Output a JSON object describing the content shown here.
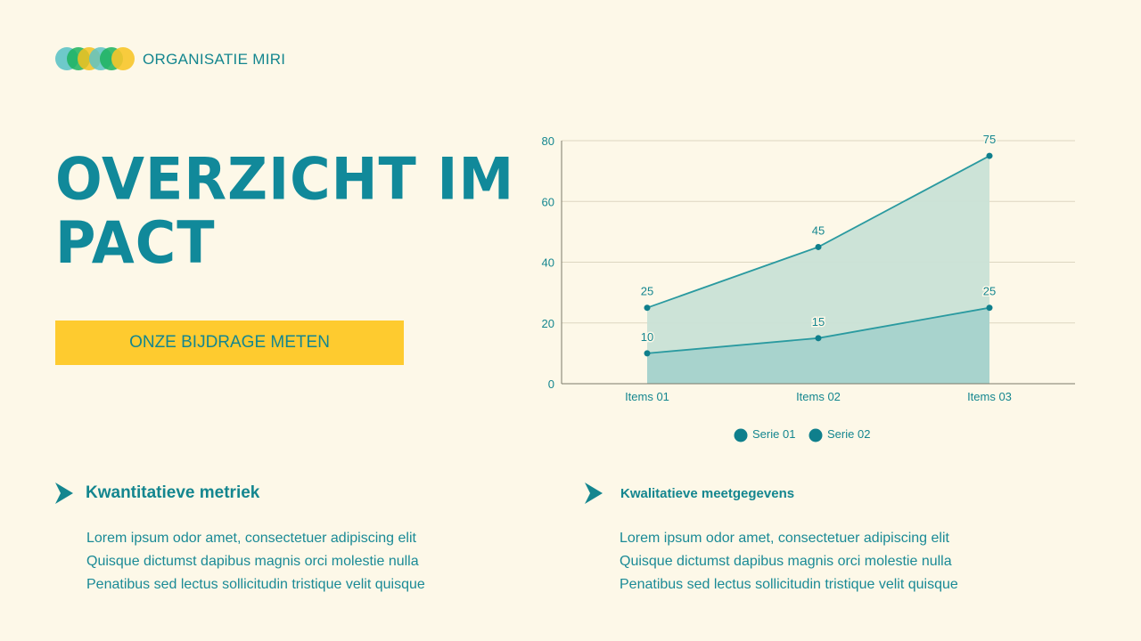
{
  "brand": {
    "name": "ORGANISATIE MIRI",
    "logo_colors": [
      "#5ec3c6",
      "#1cb35e",
      "#f3c21f",
      "#5ec3c6",
      "#1cb35e",
      "#f7c52a"
    ]
  },
  "header": {
    "title": "OVERZICHT IMPACT",
    "title_line1": "OVERZICHT IM",
    "title_line2": "PACT"
  },
  "cta": {
    "label": "ONZE BIJDRAGE METEN"
  },
  "colors": {
    "background": "#fdf8e8",
    "primary": "#14868f",
    "accent": "#fecb2f",
    "area_serie01": "#c9e2d6",
    "area_serie02": "#a5d2cc"
  },
  "chart_data": {
    "type": "area",
    "title": "",
    "xlabel": "",
    "ylabel": "",
    "categories": [
      "Items 01",
      "Items 02",
      "Items 03"
    ],
    "series": [
      {
        "name": "Serie 01",
        "values": [
          25,
          45,
          75
        ]
      },
      {
        "name": "Serie 02",
        "values": [
          10,
          15,
          25
        ]
      }
    ],
    "ylim": [
      0,
      80
    ],
    "yticks": [
      0,
      20,
      40,
      60,
      80
    ],
    "grid": true,
    "legend_position": "bottom",
    "data_labels": true
  },
  "sections": [
    {
      "heading": "Kwantitatieve metriek",
      "lines": [
        "Lorem ipsum odor amet, consectetuer adipiscing elit",
        "Quisque dictumst dapibus magnis orci molestie nulla",
        "Penatibus sed lectus sollicitudin tristique velit quisque"
      ]
    },
    {
      "heading": "Kwalitatieve meetgegevens",
      "lines": [
        "Lorem ipsum odor amet, consectetuer adipiscing elit",
        "Quisque dictumst dapibus magnis orci molestie nulla",
        "Penatibus sed lectus sollicitudin tristique velit quisque"
      ]
    }
  ]
}
